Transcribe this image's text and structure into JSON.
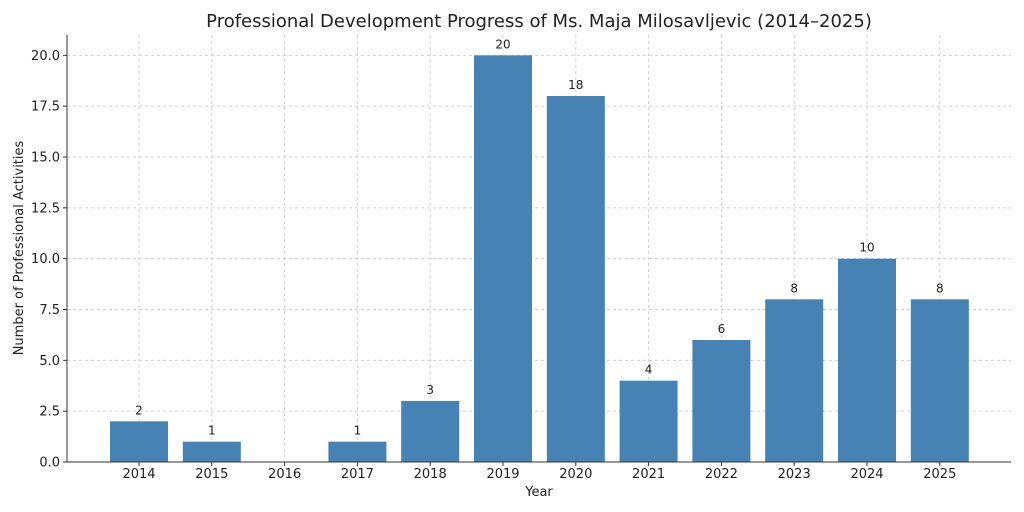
{
  "chart_data": {
    "type": "bar",
    "title": "Professional Development Progress of Ms. Maja Milosavljevic (2014–2025)",
    "xlabel": "Year",
    "ylabel": "Number of Professional Activities",
    "categories": [
      "2014",
      "2015",
      "2016",
      "2017",
      "2018",
      "2019",
      "2020",
      "2021",
      "2022",
      "2023",
      "2024",
      "2025"
    ],
    "values": [
      2,
      1,
      0,
      1,
      3,
      20,
      18,
      4,
      6,
      8,
      10,
      8
    ],
    "data_labels": [
      "2",
      "1",
      "",
      "1",
      "3",
      "20",
      "18",
      "4",
      "6",
      "8",
      "10",
      "8"
    ],
    "ylim": [
      0,
      21
    ],
    "yticks": [
      0,
      2.5,
      5,
      7.5,
      10,
      12.5,
      15,
      17.5,
      20
    ],
    "ytick_labels": [
      "0.0",
      "2.5",
      "5.0",
      "7.5",
      "10.0",
      "12.5",
      "15.0",
      "17.5",
      "20.0"
    ],
    "grid": true,
    "bar_color": "#4682b4"
  }
}
